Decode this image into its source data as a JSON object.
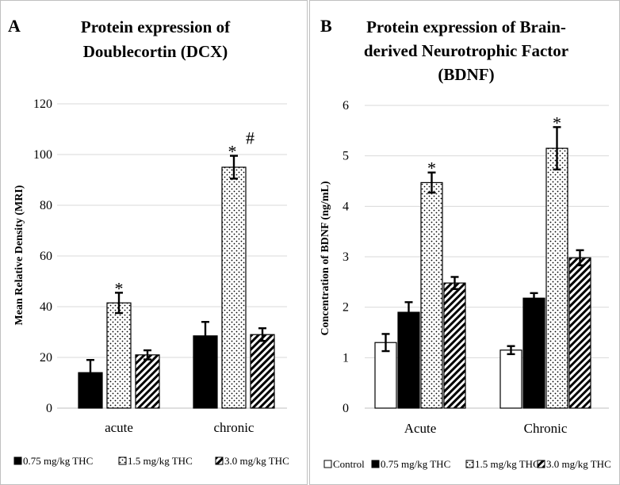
{
  "chart_data": [
    {
      "type": "bar",
      "panel": "A",
      "title": "Protein expression of Doublecortin (DCX)",
      "title_lines": [
        "Protein expression of",
        "Doublecortin (DCX)"
      ],
      "xlabel": "",
      "ylabel": "Mean Relative Density (MRI)",
      "ylim": [
        0,
        120
      ],
      "yticks": [
        0,
        20,
        40,
        60,
        80,
        100,
        120
      ],
      "categories": [
        "acute",
        "chronic"
      ],
      "series": [
        {
          "name": "0.75 mg/kg THC",
          "pattern": "solid",
          "values": [
            14,
            28.5
          ],
          "errors": [
            5,
            5.5
          ]
        },
        {
          "name": "1.5 mg/kg THC",
          "pattern": "dots",
          "values": [
            41.5,
            95
          ],
          "errors": [
            4,
            4.5
          ]
        },
        {
          "name": "3.0 mg/kg THC",
          "pattern": "stripes",
          "values": [
            21,
            29
          ],
          "errors": [
            1.8,
            2.5
          ]
        }
      ],
      "annotations": [
        {
          "text": "*",
          "category": "acute",
          "series": 1
        },
        {
          "text": "*",
          "category": "chronic",
          "series": 1
        },
        {
          "text": "#",
          "category": "chronic",
          "series": 1
        }
      ],
      "legend_position": "bottom",
      "grid": true
    },
    {
      "type": "bar",
      "panel": "B",
      "title": "Protein expression of Brain-derived Neurotrophic Factor (BDNF)",
      "title_lines": [
        "Protein expression of Brain-",
        "derived Neurotrophic Factor",
        "(BDNF)"
      ],
      "xlabel": "",
      "ylabel": "Concentration of BDNF (ng/mL)",
      "ylim": [
        0,
        6
      ],
      "yticks": [
        0,
        1,
        2,
        3,
        4,
        5,
        6
      ],
      "categories": [
        "Acute",
        "Chronic"
      ],
      "series": [
        {
          "name": "Control",
          "pattern": "white",
          "values": [
            1.3,
            1.15
          ],
          "errors": [
            0.17,
            0.08
          ]
        },
        {
          "name": "0.75 mg/kg THC",
          "pattern": "solid",
          "values": [
            1.9,
            2.18
          ],
          "errors": [
            0.2,
            0.1
          ]
        },
        {
          "name": "1.5 mg/kg THC",
          "pattern": "dots",
          "values": [
            4.47,
            5.15
          ],
          "errors": [
            0.2,
            0.42
          ]
        },
        {
          "name": "3.0 mg/kg THC",
          "pattern": "stripes",
          "values": [
            2.48,
            2.98
          ],
          "errors": [
            0.12,
            0.15
          ]
        }
      ],
      "annotations": [
        {
          "text": "*",
          "category": "Acute",
          "series": 2
        },
        {
          "text": "*",
          "category": "Chronic",
          "series": 2
        }
      ],
      "legend_position": "bottom",
      "grid": true
    }
  ]
}
